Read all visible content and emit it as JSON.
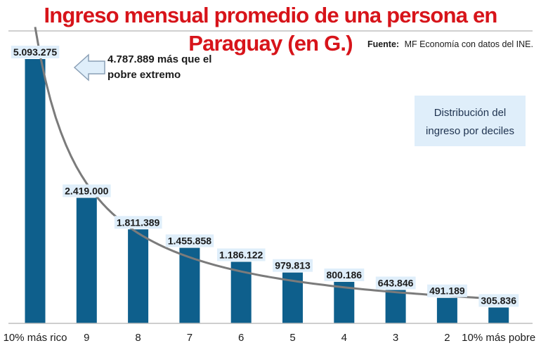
{
  "chart_data": {
    "type": "bar",
    "title": "Ingreso mensual promedio de una persona en Paraguay (en G.)",
    "source_label": "Fuente:",
    "source_text": "MF Economía con datos del INE.",
    "annotation_line1": "4.787.889 más que el",
    "annotation_line2": "pobre extremo",
    "box_line1": "Distribución del",
    "box_line2": "ingreso por deciles",
    "categories": [
      "10% más rico",
      "9",
      "8",
      "7",
      "6",
      "5",
      "4",
      "3",
      "2",
      "10% más pobre"
    ],
    "values": [
      5093275,
      2419000,
      1811389,
      1455858,
      1186122,
      979813,
      800186,
      643846,
      491189,
      305836
    ],
    "value_labels": [
      "5.093.275",
      "2.419.000",
      "1.811.389",
      "1.455.858",
      "1.186.122",
      "979.813",
      "800.186",
      "643.846",
      "491.189",
      "305.836"
    ],
    "ylim": [
      0,
      5093275
    ],
    "grid": false,
    "trendline": true,
    "colors": {
      "bar": "#0e5f8c",
      "label_bg": "#dfeefa",
      "trend": "#7b7b7b",
      "title": "#d7141a",
      "box_bg": "#dfeefa",
      "arrow_fill": "#dfeefa",
      "arrow_stroke": "#8a9fb5"
    }
  }
}
